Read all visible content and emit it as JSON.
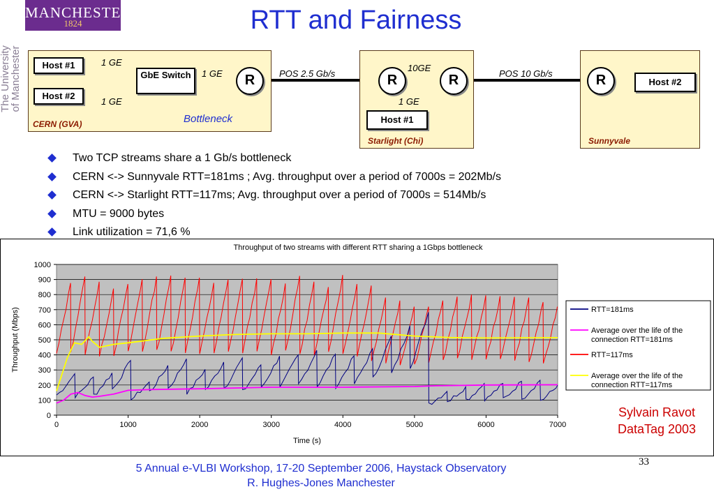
{
  "logo": {
    "name": "MANCHESTER",
    "year": "1824",
    "vertical": "The University of Manchester"
  },
  "title": "RTT and Fairness",
  "diagram": {
    "sites": {
      "cern": "CERN (GVA)",
      "starlight": "Starlight (Chi)",
      "sunnyvale": "Sunnyvale"
    },
    "hosts": {
      "cern1": "Host #1",
      "cern2": "Host #2",
      "starlight": "Host #1",
      "sunnyvale": "Host #2"
    },
    "switch": "GbE Switch",
    "router": "R",
    "links": {
      "cern1": "1 GE",
      "cern2": "1 GE",
      "switch_router": "1 GE",
      "pos25": "POS 2.5 Gb/s",
      "tengig": "10GE",
      "starlight_host": "1 GE",
      "pos10": "POS 10 Gb/s"
    },
    "bottleneck": "Bottleneck"
  },
  "bullets": [
    "Two TCP streams share a 1 Gb/s bottleneck",
    "CERN <-> Sunnyvale RTT=181ms ; Avg. throughput over a period of 7000s = 202Mb/s",
    "CERN <-> Starlight RTT=117ms; Avg. throughput over a period of 7000s = 514Mb/s",
    "MTU = 9000 bytes",
    "Link utilization = 71,6 %"
  ],
  "chart_data": {
    "type": "line",
    "title": "Throughput of two streams with different RTT sharing a 1Gbps bottleneck",
    "xlabel": "Time (s)",
    "ylabel": "Throughput (Mbps)",
    "xlim": [
      0,
      7000
    ],
    "ylim": [
      0,
      1000
    ],
    "xticks": [
      0,
      1000,
      2000,
      3000,
      4000,
      5000,
      6000,
      7000
    ],
    "yticks": [
      0,
      100,
      200,
      300,
      400,
      500,
      600,
      700,
      800,
      900,
      1000
    ],
    "grid": true,
    "legend_position": "right",
    "colors": {
      "plot_bg": "#c0c0c0",
      "rtt181": "#000080",
      "avg181": "#ff00ff",
      "rtt117": "#ff0000",
      "avg117": "#ffff00"
    },
    "series": [
      {
        "name": "RTT=181ms",
        "sawtooth_peaks": [
          [
            0,
            50
          ],
          [
            100,
            120
          ],
          [
            430,
            440
          ],
          [
            560,
            170
          ],
          [
            820,
            300
          ],
          [
            1100,
            380
          ],
          [
            1300,
            220
          ],
          [
            1560,
            330
          ],
          [
            1800,
            380
          ],
          [
            2060,
            300
          ],
          [
            2320,
            350
          ],
          [
            2600,
            380
          ],
          [
            2880,
            330
          ],
          [
            3150,
            400
          ],
          [
            3400,
            400
          ],
          [
            3640,
            430
          ],
          [
            3950,
            400
          ],
          [
            4280,
            390
          ],
          [
            4580,
            500
          ],
          [
            4900,
            580
          ],
          [
            5250,
            700
          ],
          [
            5400,
            150
          ],
          [
            5900,
            210
          ],
          [
            6300,
            210
          ],
          [
            6700,
            240
          ],
          [
            7000,
            200
          ]
        ]
      },
      {
        "name": "Average over the life of the connection RTT=181ms",
        "points": [
          [
            0,
            80
          ],
          [
            100,
            100
          ],
          [
            200,
            140
          ],
          [
            300,
            150
          ],
          [
            400,
            130
          ],
          [
            500,
            120
          ],
          [
            600,
            125
          ],
          [
            800,
            140
          ],
          [
            1000,
            165
          ],
          [
            1300,
            170
          ],
          [
            2000,
            175
          ],
          [
            3000,
            185
          ],
          [
            4000,
            185
          ],
          [
            5000,
            190
          ],
          [
            5300,
            195
          ],
          [
            6000,
            200
          ],
          [
            7000,
            202
          ]
        ]
      },
      {
        "name": "RTT=117ms",
        "sawtooth_peaks": [
          [
            0,
            100
          ],
          [
            150,
            870
          ],
          [
            300,
            890
          ],
          [
            500,
            950
          ],
          [
            700,
            820
          ],
          [
            900,
            860
          ],
          [
            1100,
            880
          ],
          [
            1280,
            920
          ],
          [
            1480,
            920
          ],
          [
            1680,
            930
          ],
          [
            1880,
            900
          ],
          [
            2080,
            920
          ],
          [
            2280,
            850
          ],
          [
            2450,
            920
          ],
          [
            2650,
            900
          ],
          [
            2850,
            910
          ],
          [
            3050,
            900
          ],
          [
            3220,
            870
          ],
          [
            3420,
            930
          ],
          [
            3620,
            880
          ],
          [
            3800,
            850
          ],
          [
            4000,
            930
          ],
          [
            4200,
            870
          ],
          [
            4400,
            860
          ],
          [
            4600,
            780
          ],
          [
            4800,
            760
          ],
          [
            5000,
            720
          ],
          [
            5200,
            720
          ],
          [
            5500,
            780
          ],
          [
            5800,
            800
          ],
          [
            6200,
            790
          ],
          [
            6600,
            780
          ],
          [
            7000,
            720
          ]
        ]
      },
      {
        "name": "Average over the life of the connection RTT=117ms",
        "points": [
          [
            0,
            160
          ],
          [
            150,
            380
          ],
          [
            250,
            480
          ],
          [
            350,
            470
          ],
          [
            450,
            520
          ],
          [
            500,
            490
          ],
          [
            600,
            450
          ],
          [
            800,
            470
          ],
          [
            1000,
            480
          ],
          [
            1500,
            510
          ],
          [
            2000,
            525
          ],
          [
            2500,
            535
          ],
          [
            3000,
            540
          ],
          [
            3500,
            540
          ],
          [
            4000,
            545
          ],
          [
            4500,
            545
          ],
          [
            5000,
            525
          ],
          [
            5500,
            515
          ],
          [
            6000,
            512
          ],
          [
            7000,
            514
          ]
        ]
      }
    ]
  },
  "credit": [
    "Sylvain Ravot",
    "DataTag 2003"
  ],
  "page_number": "33",
  "footer": [
    "5 Annual e-VLBI Workshop, 17-20 September 2006, Haystack Observatory",
    "R. Hughes-Jones  Manchester"
  ]
}
